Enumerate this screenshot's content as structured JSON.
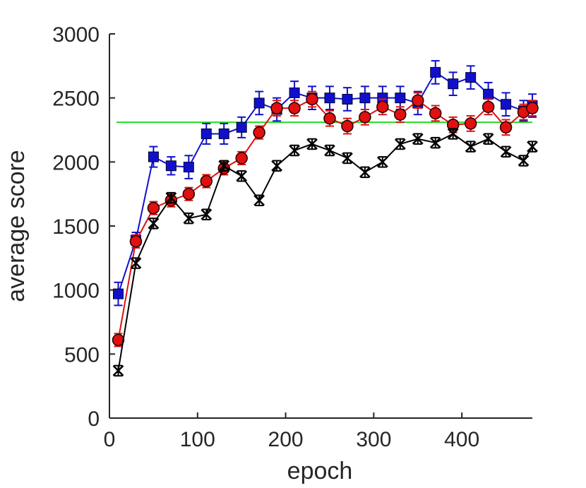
{
  "chart_data": {
    "type": "line",
    "xlabel": "epoch",
    "ylabel": "average score",
    "xlim": [
      0,
      480
    ],
    "ylim": [
      0,
      3000
    ],
    "xticks": [
      0,
      100,
      200,
      300,
      400
    ],
    "yticks": [
      0,
      500,
      1000,
      1500,
      2000,
      2500,
      3000
    ],
    "x_tick_labels": [
      "0",
      "100",
      "200",
      "300",
      "400"
    ],
    "y_tick_labels": [
      "0",
      "500",
      "1000",
      "1500",
      "2000",
      "2500",
      "3000"
    ],
    "grid": false,
    "reference_line": {
      "y": 2310,
      "color": "#22dd22"
    },
    "x": [
      10,
      30,
      50,
      70,
      90,
      110,
      130,
      150,
      170,
      190,
      210,
      230,
      250,
      270,
      290,
      310,
      330,
      350,
      370,
      390,
      410,
      430,
      450,
      470,
      480
    ],
    "series": [
      {
        "color": "#1010cc",
        "marker": "square",
        "values": [
          970,
          1390,
          2040,
          1970,
          1960,
          2220,
          2220,
          2270,
          2460,
          2410,
          2540,
          2500,
          2500,
          2490,
          2500,
          2500,
          2500,
          2460,
          2700,
          2610,
          2660,
          2530,
          2450,
          2400,
          2440
        ],
        "errors": [
          90,
          60,
          80,
          70,
          90,
          80,
          80,
          80,
          90,
          90,
          90,
          90,
          90,
          90,
          90,
          90,
          90,
          90,
          90,
          90,
          90,
          90,
          90,
          80,
          90
        ]
      },
      {
        "color": "#e01010",
        "marker": "circle",
        "values": [
          610,
          1380,
          1640,
          1700,
          1750,
          1850,
          1950,
          2030,
          2230,
          2420,
          2420,
          2490,
          2340,
          2280,
          2350,
          2430,
          2370,
          2480,
          2380,
          2290,
          2300,
          2430,
          2270,
          2390,
          2420
        ],
        "errors": [
          50,
          50,
          50,
          50,
          50,
          50,
          50,
          50,
          50,
          60,
          60,
          60,
          60,
          60,
          60,
          60,
          60,
          60,
          60,
          60,
          60,
          60,
          60,
          60,
          60
        ]
      },
      {
        "color": "#000000",
        "marker": "x",
        "values": [
          370,
          1210,
          1520,
          1720,
          1560,
          1590,
          1970,
          1890,
          1700,
          1970,
          2090,
          2140,
          2090,
          2030,
          1920,
          2000,
          2140,
          2180,
          2150,
          2220,
          2120,
          2180,
          2080,
          2010,
          2120
        ],
        "errors": [
          40,
          40,
          40,
          40,
          40,
          40,
          40,
          40,
          40,
          40,
          40,
          40,
          40,
          40,
          40,
          40,
          40,
          40,
          40,
          40,
          40,
          40,
          40,
          40,
          40
        ]
      }
    ]
  }
}
